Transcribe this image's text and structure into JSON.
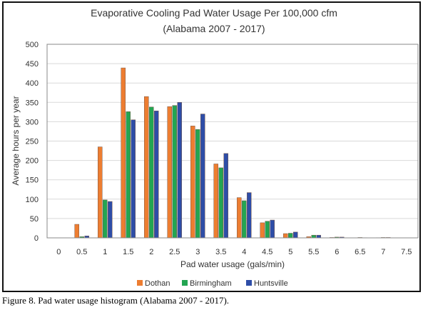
{
  "chart_data": {
    "type": "bar",
    "title": "Evaporative Cooling Pad Water Usage Per 100,000 cfm",
    "subtitle": "(Alabama 2007 - 2017)",
    "xlabel": "Pad water usage (gals/min)",
    "ylabel": "Average hours per year",
    "ylim": [
      0,
      500
    ],
    "yticks": [
      "0",
      "50",
      "100",
      "150",
      "200",
      "250",
      "300",
      "350",
      "400",
      "450",
      "500"
    ],
    "categories": [
      "0",
      "0.5",
      "1",
      "1.5",
      "2",
      "2.5",
      "3",
      "3.5",
      "4",
      "4.5",
      "5",
      "5.5",
      "6",
      "6.5",
      "7",
      "7.5"
    ],
    "series": [
      {
        "name": "Dothan",
        "color": "#ED7D31",
        "values": [
          0,
          35,
          235,
          439,
          365,
          339,
          289,
          191,
          104,
          39,
          11,
          3,
          1,
          0,
          0.5,
          0
        ]
      },
      {
        "name": "Birmingham",
        "color": "#23A552",
        "values": [
          0,
          3,
          98,
          326,
          338,
          342,
          280,
          181,
          96,
          43,
          12,
          7,
          2,
          1,
          1,
          0
        ]
      },
      {
        "name": "Huntsville",
        "color": "#2E4DA7",
        "values": [
          0,
          5,
          94,
          305,
          328,
          350,
          320,
          218,
          117,
          46,
          15,
          7,
          2,
          0.5,
          1,
          0
        ]
      }
    ],
    "grid": true,
    "legend_position": "bottom"
  },
  "caption": "Figure 8.  Pad water usage histogram (Alabama 2007 - 2017)."
}
